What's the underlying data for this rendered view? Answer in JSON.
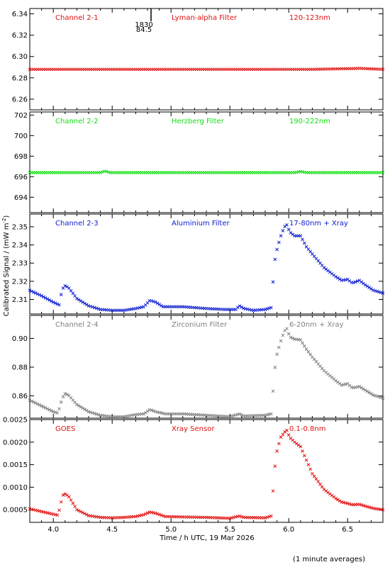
{
  "figure": {
    "ylabel": "Calibrated Signal / (mW m",
    "ylabel_sup": "-2",
    "ylabel_close": ")",
    "xlabel": "Time / h UTC, 19 Mar 2026",
    "footnote": "(1 minute averages)",
    "marker": {
      "top_label": "1830",
      "bottom_label": "84.5",
      "x": 4.83
    }
  },
  "chart_data": [
    {
      "type": "scatter",
      "labels": [
        "Channel 2-1",
        "Lyman-alpha Filter",
        "120-123nm"
      ],
      "color": "#e01010",
      "ylim": [
        6.25,
        6.345
      ],
      "yticks": [
        6.26,
        6.28,
        6.3,
        6.32,
        6.34
      ],
      "ytick_labels": [
        "6.26",
        "6.28",
        "6.30",
        "6.32",
        "6.34"
      ],
      "xlim": [
        3.8,
        6.8
      ],
      "series": [
        {
          "points": [
            [
              3.8,
              6.288
            ],
            [
              4.4,
              6.288
            ],
            [
              5.0,
              6.288
            ],
            [
              5.6,
              6.288
            ],
            [
              6.2,
              6.288
            ],
            [
              6.58,
              6.2888
            ],
            [
              6.6,
              6.289
            ],
            [
              6.62,
              6.2888
            ],
            [
              6.8,
              6.288
            ]
          ]
        }
      ]
    },
    {
      "type": "scatter",
      "labels": [
        "Channel 2-2",
        "Herzberg Filter",
        "190-222nm"
      ],
      "color": "#10e010",
      "ylim": [
        692.5,
        702.3
      ],
      "yticks": [
        694,
        696,
        698,
        700,
        702
      ],
      "ytick_labels": [
        "694",
        "696",
        "698",
        "700",
        "702"
      ],
      "xlim": [
        3.8,
        6.8
      ],
      "series": [
        {
          "points": [
            [
              3.8,
              696.4
            ],
            [
              4.4,
              696.4
            ],
            [
              4.44,
              696.55
            ],
            [
              4.48,
              696.4
            ],
            [
              5.2,
              696.4
            ],
            [
              6.05,
              696.4
            ],
            [
              6.1,
              696.5
            ],
            [
              6.15,
              696.4
            ],
            [
              6.8,
              696.4
            ]
          ]
        }
      ]
    },
    {
      "type": "scatter",
      "labels": [
        "Channel 2-3",
        "Aluminium Filter",
        "17-80nm + Xray"
      ],
      "color": "#1020d0",
      "ylim": [
        2.302,
        2.357
      ],
      "yticks": [
        2.31,
        2.32,
        2.33,
        2.34,
        2.35
      ],
      "ytick_labels": [
        "2.31",
        "2.32",
        "2.33",
        "2.34",
        "2.35"
      ],
      "xlim": [
        3.8,
        6.8
      ],
      "series": [
        {
          "points": [
            [
              3.8,
              2.315
            ],
            [
              3.9,
              2.312
            ],
            [
              4.0,
              2.3085
            ],
            [
              4.05,
              2.307
            ],
            [
              4.06,
              2.311
            ],
            [
              4.08,
              2.316
            ],
            [
              4.1,
              2.3175
            ],
            [
              4.13,
              2.3165
            ],
            [
              4.2,
              2.3105
            ],
            [
              4.3,
              2.3065
            ],
            [
              4.4,
              2.3045
            ],
            [
              4.5,
              2.304
            ],
            [
              4.6,
              2.304
            ],
            [
              4.7,
              2.305
            ],
            [
              4.77,
              2.306
            ],
            [
              4.82,
              2.3095
            ],
            [
              4.87,
              2.3085
            ],
            [
              4.93,
              2.306
            ],
            [
              5.1,
              2.306
            ],
            [
              5.3,
              2.305
            ],
            [
              5.45,
              2.3045
            ],
            [
              5.55,
              2.3045
            ],
            [
              5.58,
              2.3065
            ],
            [
              5.62,
              2.305
            ],
            [
              5.7,
              2.304
            ],
            [
              5.8,
              2.3045
            ],
            [
              5.85,
              2.3055
            ],
            [
              5.86,
              2.313
            ],
            [
              5.87,
              2.323
            ],
            [
              5.88,
              2.331
            ],
            [
              5.9,
              2.3375
            ],
            [
              5.93,
              2.3445
            ],
            [
              5.96,
              2.3495
            ],
            [
              5.98,
              2.3515
            ],
            [
              6.01,
              2.347
            ],
            [
              6.05,
              2.345
            ],
            [
              6.1,
              2.345
            ],
            [
              6.15,
              2.339
            ],
            [
              6.2,
              2.335
            ],
            [
              6.3,
              2.3275
            ],
            [
              6.4,
              2.3225
            ],
            [
              6.45,
              2.3205
            ],
            [
              6.5,
              2.321
            ],
            [
              6.54,
              2.319
            ],
            [
              6.6,
              2.3205
            ],
            [
              6.65,
              2.318
            ],
            [
              6.72,
              2.315
            ],
            [
              6.8,
              2.3135
            ]
          ]
        }
      ]
    },
    {
      "type": "scatter",
      "labels": [
        "Channel 2-4",
        "Zirconium Filter",
        "6-20nm + Xray"
      ],
      "color": "#808080",
      "ylim": [
        0.8445,
        0.916
      ],
      "yticks": [
        0.86,
        0.88,
        0.9
      ],
      "ytick_labels": [
        "0.86",
        "0.88",
        "0.90"
      ],
      "xlim": [
        3.8,
        6.8
      ],
      "series": [
        {
          "points": [
            [
              3.8,
              0.857
            ],
            [
              3.9,
              0.853
            ],
            [
              4.0,
              0.849
            ],
            [
              4.04,
              0.848
            ],
            [
              4.06,
              0.854
            ],
            [
              4.08,
              0.859
            ],
            [
              4.1,
              0.8615
            ],
            [
              4.13,
              0.8605
            ],
            [
              4.2,
              0.854
            ],
            [
              4.3,
              0.849
            ],
            [
              4.4,
              0.8465
            ],
            [
              4.5,
              0.8455
            ],
            [
              4.6,
              0.8455
            ],
            [
              4.7,
              0.847
            ],
            [
              4.77,
              0.8475
            ],
            [
              4.82,
              0.8505
            ],
            [
              4.87,
              0.849
            ],
            [
              4.95,
              0.8475
            ],
            [
              5.1,
              0.8475
            ],
            [
              5.3,
              0.8465
            ],
            [
              5.5,
              0.8455
            ],
            [
              5.58,
              0.8475
            ],
            [
              5.62,
              0.846
            ],
            [
              5.8,
              0.8465
            ],
            [
              5.85,
              0.8475
            ],
            [
              5.86,
              0.856
            ],
            [
              5.87,
              0.867
            ],
            [
              5.88,
              0.878
            ],
            [
              5.9,
              0.889
            ],
            [
              5.93,
              0.8975
            ],
            [
              5.96,
              0.9045
            ],
            [
              5.98,
              0.9075
            ],
            [
              6.01,
              0.901
            ],
            [
              6.05,
              0.8995
            ],
            [
              6.1,
              0.899
            ],
            [
              6.15,
              0.8925
            ],
            [
              6.2,
              0.887
            ],
            [
              6.3,
              0.8775
            ],
            [
              6.4,
              0.8705
            ],
            [
              6.45,
              0.8675
            ],
            [
              6.5,
              0.8685
            ],
            [
              6.54,
              0.8655
            ],
            [
              6.6,
              0.8665
            ],
            [
              6.65,
              0.864
            ],
            [
              6.72,
              0.8605
            ],
            [
              6.8,
              0.8585
            ]
          ]
        }
      ]
    },
    {
      "type": "scatter",
      "labels": [
        "GOES",
        "Xray Sensor",
        "0.1-0.8nm"
      ],
      "color": "#e01010",
      "ylim": [
        0.00022,
        0.0025
      ],
      "yticks": [
        0.0005,
        0.001,
        0.0015,
        0.002,
        0.0025
      ],
      "ytick_labels": [
        "0.0005",
        "0.0010",
        "0.0015",
        "0.0020",
        "0.0025"
      ],
      "xlim": [
        3.8,
        6.8
      ],
      "series": [
        {
          "points": [
            [
              3.8,
              0.00052
            ],
            [
              3.9,
              0.00046
            ],
            [
              4.0,
              0.0004
            ],
            [
              4.04,
              0.00038
            ],
            [
              4.06,
              0.0006
            ],
            [
              4.08,
              0.00082
            ],
            [
              4.1,
              0.00085
            ],
            [
              4.13,
              0.0008
            ],
            [
              4.2,
              0.0005
            ],
            [
              4.3,
              0.00037
            ],
            [
              4.4,
              0.00033
            ],
            [
              4.5,
              0.00032
            ],
            [
              4.6,
              0.00033
            ],
            [
              4.7,
              0.00035
            ],
            [
              4.77,
              0.00039
            ],
            [
              4.82,
              0.00045
            ],
            [
              4.87,
              0.00042
            ],
            [
              4.95,
              0.00035
            ],
            [
              5.1,
              0.00034
            ],
            [
              5.3,
              0.00033
            ],
            [
              5.5,
              0.00031
            ],
            [
              5.58,
              0.00036
            ],
            [
              5.62,
              0.00033
            ],
            [
              5.8,
              0.00032
            ],
            [
              5.85,
              0.00036
            ],
            [
              5.86,
              0.00065
            ],
            [
              5.87,
              0.00105
            ],
            [
              5.88,
              0.0014
            ],
            [
              5.9,
              0.0018
            ],
            [
              5.93,
              0.0021
            ],
            [
              5.96,
              0.0022
            ],
            [
              5.98,
              0.00228
            ],
            [
              6.01,
              0.0021
            ],
            [
              6.05,
              0.002
            ],
            [
              6.1,
              0.0019
            ],
            [
              6.15,
              0.0016
            ],
            [
              6.2,
              0.0013
            ],
            [
              6.3,
              0.00095
            ],
            [
              6.4,
              0.00075
            ],
            [
              6.45,
              0.00067
            ],
            [
              6.5,
              0.00064
            ],
            [
              6.54,
              0.00061
            ],
            [
              6.6,
              0.00062
            ],
            [
              6.65,
              0.00058
            ],
            [
              6.72,
              0.00053
            ],
            [
              6.8,
              0.0005
            ]
          ]
        }
      ]
    }
  ],
  "x_axis": {
    "ticks": [
      4.0,
      4.5,
      5.0,
      5.5,
      6.0,
      6.5
    ],
    "tick_labels": [
      "4.0",
      "4.5",
      "5.0",
      "5.5",
      "6.0",
      "6.5"
    ]
  }
}
